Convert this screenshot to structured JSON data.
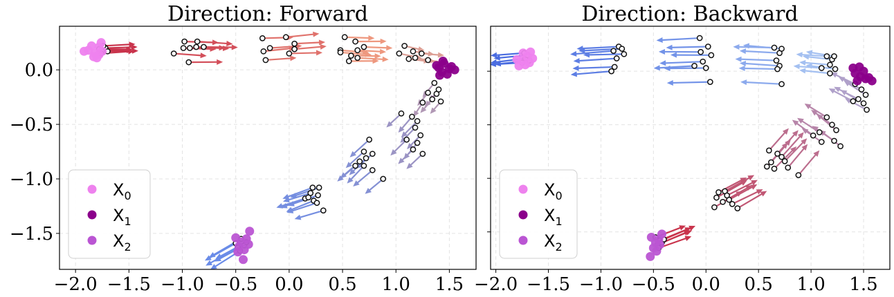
{
  "colors": {
    "x0": "#EE82EE",
    "x1": "#8B008B",
    "x2": "#BA55D3",
    "forward_start": "#C9344C",
    "forward_mid": "#F2A385",
    "forward_end": "#6A8CE8",
    "backward_start": "#4A6CE0",
    "backward_mid": "#A8C4F2",
    "backward_end": "#C9344C"
  },
  "chart_data": [
    {
      "type": "scatter",
      "title": "Direction: Forward",
      "xlim": [
        -2.15,
        1.75
      ],
      "ylim": [
        -1.83,
        0.4
      ],
      "xticks": [
        -2.0,
        -1.5,
        -1.0,
        -0.5,
        0.0,
        0.5,
        1.0,
        1.5
      ],
      "xtick_labels": [
        "−2.0",
        "−1.5",
        "−1.0",
        "−0.5",
        "0.0",
        "0.5",
        "1.0",
        "1.5"
      ],
      "yticks": [
        0.0,
        -0.5,
        -1.0,
        -1.5
      ],
      "ytick_labels": [
        "0.0",
        "−0.5",
        "−1.0",
        "−1.5"
      ],
      "grid": true,
      "legend_position": "lower-left",
      "legend": [
        {
          "key": "x0",
          "label": "X",
          "sub": "0"
        },
        {
          "key": "x1",
          "label": "X",
          "sub": "1"
        },
        {
          "key": "x2",
          "label": "X",
          "sub": "2"
        }
      ],
      "x0_points": [
        [
          -1.82,
          0.15
        ],
        [
          -1.78,
          0.21
        ],
        [
          -1.85,
          0.22
        ],
        [
          -1.75,
          0.17
        ],
        [
          -1.88,
          0.18
        ],
        [
          -1.8,
          0.11
        ],
        [
          -1.76,
          0.25
        ],
        [
          -1.83,
          0.12
        ],
        [
          -1.92,
          0.17
        ],
        [
          -1.78,
          0.14
        ]
      ],
      "x1_points": [
        [
          1.4,
          0.02
        ],
        [
          1.45,
          0.06
        ],
        [
          1.5,
          0.01
        ],
        [
          1.43,
          -0.02
        ],
        [
          1.48,
          -0.04
        ],
        [
          1.38,
          0.04
        ],
        [
          1.52,
          0.03
        ],
        [
          1.44,
          0.08
        ],
        [
          1.55,
          0.0
        ],
        [
          1.41,
          -0.05
        ]
      ],
      "x2_points": [
        [
          -0.45,
          -1.58
        ],
        [
          -0.4,
          -1.55
        ],
        [
          -0.47,
          -1.62
        ],
        [
          -0.42,
          -1.65
        ],
        [
          -0.37,
          -1.48
        ],
        [
          -0.5,
          -1.54
        ],
        [
          -0.43,
          -1.74
        ],
        [
          -0.38,
          -1.6
        ],
        [
          -0.48,
          -1.67
        ]
      ],
      "groups": [
        {
          "t": 0.0,
          "dx": 0.3,
          "dy": 0.01,
          "points": [
            [
              -1.75,
              0.18
            ],
            [
              -1.72,
              0.2
            ],
            [
              -1.76,
              0.15
            ],
            [
              -1.7,
              0.17
            ],
            [
              -1.74,
              0.22
            ],
            [
              -1.78,
              0.19
            ]
          ]
        },
        {
          "t": 0.12,
          "dx": 0.32,
          "dy": -0.01,
          "points": [
            [
              -1.08,
              0.15
            ],
            [
              -0.98,
              0.26
            ],
            [
              -0.93,
              0.2
            ],
            [
              -0.87,
              0.21
            ],
            [
              -0.8,
              0.21
            ],
            [
              -0.86,
              0.26
            ],
            [
              -0.99,
              0.2
            ],
            [
              -0.94,
              0.07
            ]
          ]
        },
        {
          "t": 0.28,
          "dx": 0.3,
          "dy": 0.02,
          "points": [
            [
              -0.25,
              0.29
            ],
            [
              -0.18,
              0.2
            ],
            [
              -0.03,
              0.3
            ],
            [
              0.05,
              0.24
            ],
            [
              0.05,
              0.19
            ],
            [
              0.0,
              0.15
            ],
            [
              -0.22,
              0.09
            ],
            [
              -0.24,
              0.17
            ]
          ]
        },
        {
          "t": 0.45,
          "dx": 0.28,
          "dy": -0.01,
          "points": [
            [
              0.48,
              0.18
            ],
            [
              0.52,
              0.3
            ],
            [
              0.62,
              0.26
            ],
            [
              0.64,
              0.18
            ],
            [
              0.58,
              0.13
            ],
            [
              0.48,
              0.16
            ],
            [
              0.7,
              0.21
            ],
            [
              0.56,
              0.08
            ],
            [
              0.64,
              0.11
            ]
          ]
        },
        {
          "t": 0.58,
          "dx": 0.2,
          "dy": -0.03,
          "points": [
            [
              1.08,
              0.22
            ],
            [
              1.16,
              0.17
            ],
            [
              1.24,
              0.15
            ],
            [
              1.18,
              0.11
            ],
            [
              1.12,
              0.1
            ],
            [
              1.03,
              0.15
            ],
            [
              1.3,
              0.09
            ]
          ]
        },
        {
          "t": 0.74,
          "dx": -0.1,
          "dy": -0.12,
          "points": [
            [
              1.36,
              -0.12
            ],
            [
              1.3,
              -0.21
            ],
            [
              1.4,
              -0.18
            ],
            [
              1.34,
              -0.27
            ],
            [
              1.42,
              -0.29
            ],
            [
              1.25,
              -0.3
            ],
            [
              1.38,
              -0.22
            ]
          ]
        },
        {
          "t": 0.82,
          "dx": -0.14,
          "dy": -0.14,
          "points": [
            [
              1.2,
              -0.47
            ],
            [
              1.18,
              -0.53
            ],
            [
              1.23,
              -0.6
            ],
            [
              1.1,
              -0.64
            ],
            [
              1.16,
              -0.73
            ],
            [
              1.2,
              -0.67
            ],
            [
              1.25,
              -0.77
            ],
            [
              1.05,
              -0.4
            ],
            [
              1.15,
              -0.43
            ]
          ]
        },
        {
          "t": 0.9,
          "dx": -0.17,
          "dy": -0.15,
          "points": [
            [
              0.75,
              -0.64
            ],
            [
              0.7,
              -0.75
            ],
            [
              0.78,
              -0.77
            ],
            [
              0.66,
              -0.84
            ],
            [
              0.62,
              -0.88
            ],
            [
              0.7,
              -0.88
            ],
            [
              0.78,
              -0.92
            ],
            [
              0.88,
              -1.0
            ],
            [
              0.72,
              -0.81
            ]
          ]
        },
        {
          "t": 0.96,
          "dx": -0.27,
          "dy": -0.09,
          "points": [
            [
              0.22,
              -1.08
            ],
            [
              0.28,
              -1.08
            ],
            [
              0.2,
              -1.13
            ],
            [
              0.27,
              -1.15
            ],
            [
              0.15,
              -1.18
            ],
            [
              0.23,
              -1.2
            ],
            [
              0.26,
              -1.22
            ],
            [
              0.32,
              -1.29
            ],
            [
              0.18,
              -1.17
            ]
          ]
        },
        {
          "t": 1.0,
          "dx": -0.29,
          "dy": -0.16,
          "points": [
            [
              -0.45,
              -1.55
            ],
            [
              -0.5,
              -1.59
            ],
            [
              -0.42,
              -1.61
            ],
            [
              -0.48,
              -1.63
            ],
            [
              -0.4,
              -1.58
            ],
            [
              -0.46,
              -1.66
            ]
          ]
        }
      ]
    },
    {
      "type": "scatter",
      "title": "Direction: Backward",
      "xlim": [
        -2.05,
        1.75
      ],
      "ylim": [
        -1.85,
        0.42
      ],
      "xticks": [
        -2.0,
        -1.5,
        -1.0,
        -0.5,
        0.0,
        0.5,
        1.0,
        1.5
      ],
      "xtick_labels": [
        "−2.0",
        "−1.5",
        "−1.0",
        "−0.5",
        "0.0",
        "0.5",
        "1.0",
        "1.5"
      ],
      "yticks": [
        0.0,
        -0.5,
        -1.0,
        -1.5
      ],
      "ytick_labels": [
        "",
        "",
        "",
        ""
      ],
      "grid": true,
      "legend_position": "lower-left",
      "legend": [
        {
          "key": "x0",
          "label": "X",
          "sub": "0"
        },
        {
          "key": "x1",
          "label": "X",
          "sub": "1"
        },
        {
          "key": "x2",
          "label": "X",
          "sub": "2"
        }
      ],
      "x0_points": [
        [
          -1.75,
          0.1
        ],
        [
          -1.68,
          0.08
        ],
        [
          -1.78,
          0.05
        ],
        [
          -1.7,
          0.14
        ],
        [
          -1.74,
          0.17
        ],
        [
          -1.65,
          0.12
        ],
        [
          -1.8,
          0.11
        ],
        [
          -1.72,
          0.06
        ],
        [
          -1.67,
          0.18
        ]
      ],
      "x1_points": [
        [
          1.42,
          -0.02
        ],
        [
          1.47,
          -0.05
        ],
        [
          1.5,
          0.0
        ],
        [
          1.44,
          -0.09
        ],
        [
          1.52,
          -0.07
        ],
        [
          1.4,
          0.03
        ],
        [
          1.55,
          -0.06
        ],
        [
          1.46,
          0.04
        ],
        [
          1.58,
          -0.09
        ]
      ],
      "x2_points": [
        [
          -0.52,
          -1.55
        ],
        [
          -0.48,
          -1.6
        ],
        [
          -0.5,
          -1.65
        ],
        [
          -0.45,
          -1.57
        ],
        [
          -0.42,
          -1.52
        ],
        [
          -0.47,
          -1.68
        ],
        [
          -0.53,
          -1.73
        ],
        [
          -0.44,
          -1.62
        ]
      ],
      "groups": [
        {
          "t": 0.0,
          "dx": -0.32,
          "dy": -0.03,
          "points": [
            [
              -1.72,
              0.12
            ],
            [
              -1.7,
              0.15
            ],
            [
              -1.75,
              0.08
            ],
            [
              -1.68,
              0.1
            ],
            [
              -1.73,
              0.17
            ]
          ]
        },
        {
          "t": 0.1,
          "dx": -0.4,
          "dy": -0.02,
          "points": [
            [
              -0.88,
              0.19
            ],
            [
              -0.83,
              0.23
            ],
            [
              -0.78,
              0.16
            ],
            [
              -0.85,
              0.12
            ],
            [
              -0.87,
              0.04
            ],
            [
              -0.9,
              0.0
            ],
            [
              -0.8,
              0.21
            ]
          ]
        },
        {
          "t": 0.22,
          "dx": -0.4,
          "dy": -0.01,
          "points": [
            [
              -0.06,
              0.31
            ],
            [
              0.02,
              0.23
            ],
            [
              0.05,
              0.15
            ],
            [
              -0.03,
              0.09
            ],
            [
              0.0,
              0.03
            ],
            [
              -0.11,
              0.05
            ],
            [
              0.04,
              -0.1
            ],
            [
              -0.05,
              0.18
            ]
          ]
        },
        {
          "t": 0.35,
          "dx": -0.38,
          "dy": 0.02,
          "points": [
            [
              0.65,
              0.22
            ],
            [
              0.7,
              0.17
            ],
            [
              0.72,
              0.21
            ],
            [
              0.67,
              0.1
            ],
            [
              0.7,
              0.05
            ],
            [
              0.68,
              0.02
            ],
            [
              0.72,
              -0.12
            ]
          ]
        },
        {
          "t": 0.48,
          "dx": -0.28,
          "dy": 0.03,
          "points": [
            [
              1.15,
              0.14
            ],
            [
              1.2,
              0.11
            ],
            [
              1.22,
              0.14
            ],
            [
              1.18,
              0.06
            ],
            [
              1.23,
              0.02
            ],
            [
              1.1,
              0.03
            ],
            [
              1.18,
              -0.02
            ]
          ]
        },
        {
          "t": 0.62,
          "dx": -0.22,
          "dy": 0.12,
          "points": [
            [
              1.42,
              -0.12
            ],
            [
              1.48,
              -0.17
            ],
            [
              1.52,
              -0.22
            ],
            [
              1.45,
              -0.26
            ],
            [
              1.5,
              -0.3
            ],
            [
              1.53,
              -0.36
            ],
            [
              1.4,
              -0.28
            ]
          ]
        },
        {
          "t": 0.72,
          "dx": -0.2,
          "dy": 0.14,
          "points": [
            [
              1.15,
              -0.43
            ],
            [
              1.2,
              -0.5
            ],
            [
              1.24,
              -0.55
            ],
            [
              1.08,
              -0.57
            ],
            [
              1.02,
              -0.6
            ],
            [
              1.1,
              -0.66
            ],
            [
              1.22,
              -0.65
            ],
            [
              1.28,
              -0.7
            ]
          ]
        },
        {
          "t": 0.8,
          "dx": 0.2,
          "dy": 0.22,
          "points": [
            [
              0.6,
              -0.74
            ],
            [
              0.68,
              -0.77
            ],
            [
              0.72,
              -0.8
            ],
            [
              0.62,
              -0.85
            ],
            [
              0.58,
              -0.89
            ],
            [
              0.65,
              -0.91
            ],
            [
              0.78,
              -0.9
            ],
            [
              0.88,
              -0.97
            ],
            [
              0.75,
              -0.84
            ]
          ]
        },
        {
          "t": 0.88,
          "dx": 0.28,
          "dy": 0.15,
          "points": [
            [
              0.12,
              -1.13
            ],
            [
              0.18,
              -1.12
            ],
            [
              0.1,
              -1.18
            ],
            [
              0.22,
              -1.2
            ],
            [
              0.16,
              -1.22
            ],
            [
              0.25,
              -1.24
            ],
            [
              0.08,
              -1.27
            ],
            [
              0.3,
              -1.28
            ],
            [
              0.2,
              -1.16
            ]
          ]
        },
        {
          "t": 1.0,
          "dx": 0.3,
          "dy": 0.12,
          "points": [
            [
              -0.48,
              -1.55
            ],
            [
              -0.44,
              -1.58
            ],
            [
              -0.46,
              -1.62
            ],
            [
              -0.42,
              -1.6
            ],
            [
              -0.4,
              -1.57
            ],
            [
              -0.45,
              -1.65
            ]
          ]
        }
      ]
    }
  ]
}
